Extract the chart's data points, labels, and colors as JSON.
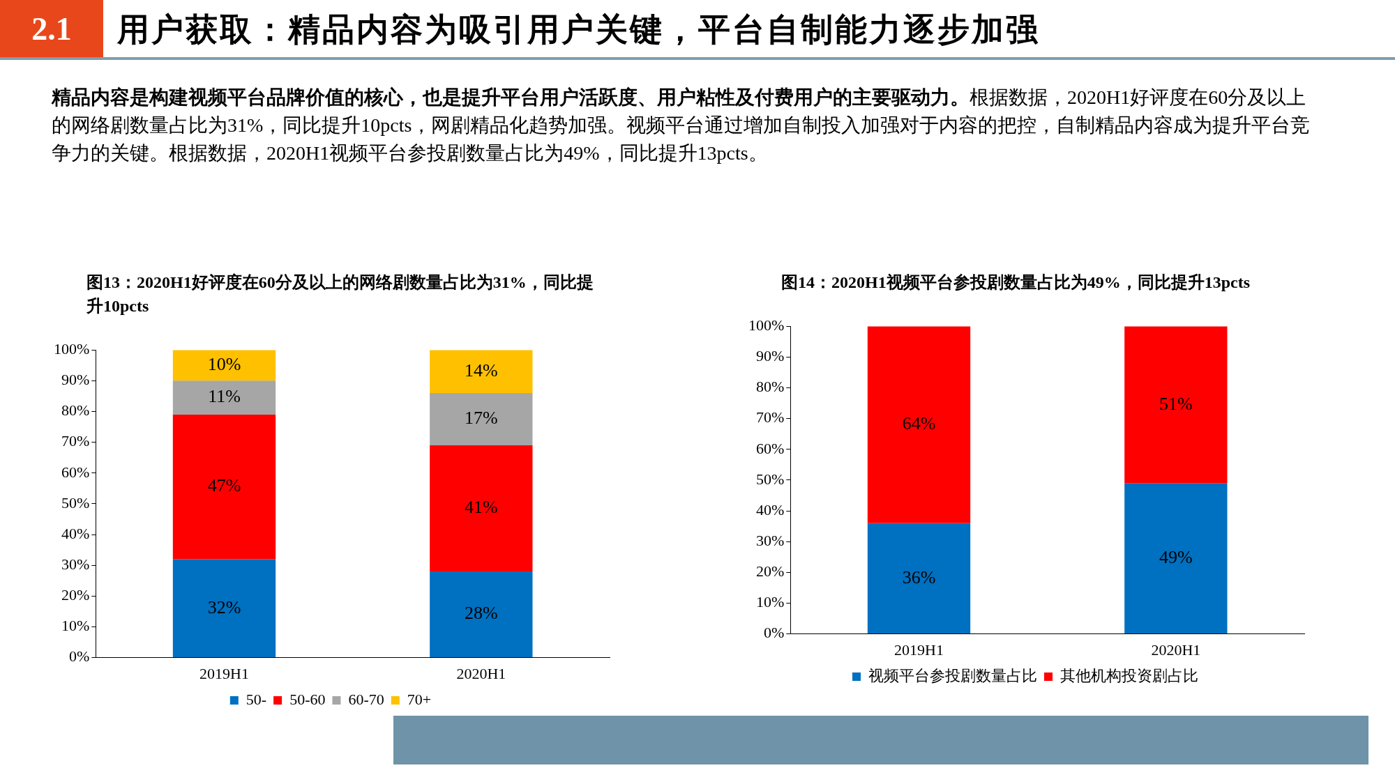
{
  "chart_data": [
    {
      "type": "other",
      "title": "用户获取：精品内容为吸引用户关键，平台自制能力逐步加强",
      "annotations": [
        "2.1",
        "精品内容是构建视频平台品牌价值的核心，也是提升平台用户活跃度、用户粘性及付费用户的主要驱动力。",
        "根据数据，2020H1好评度在60分及以上的网络剧数量占比为31%，同比提升10pcts，网剧精品化趋势加强。视频平台通过增加自制投入加强对于内容的把控，自制精品内容成为提升平台竞争力的关键。根据数据，2020H1视频平台参投剧数量占比为49%，同比提升13pcts。"
      ]
    },
    {
      "type": "bar",
      "stacked": true,
      "title": "图13：2020H1好评度在60分及以上的网络剧数量占比为31%，同比提升10pcts",
      "categories": [
        "2019H1",
        "2020H1"
      ],
      "ylim": [
        0,
        100
      ],
      "yticks": [
        {
          "value": 0,
          "label": "0%"
        },
        {
          "value": 10,
          "label": "10%"
        },
        {
          "value": 20,
          "label": "20%"
        },
        {
          "value": 30,
          "label": "30%"
        },
        {
          "value": 40,
          "label": "40%"
        },
        {
          "value": 50,
          "label": "50%"
        },
        {
          "value": 60,
          "label": "60%"
        },
        {
          "value": 70,
          "label": "70%"
        },
        {
          "value": 80,
          "label": "80%"
        },
        {
          "value": 90,
          "label": "90%"
        },
        {
          "value": 100,
          "label": "100%"
        }
      ],
      "grid": false,
      "legend": "bottom",
      "series": [
        {
          "name": "50-",
          "color": "#0070c0",
          "values": [
            32,
            28
          ],
          "value_labels": [
            "32%",
            "28%"
          ]
        },
        {
          "name": "50-60",
          "color": "#ff0000",
          "values": [
            47,
            41
          ],
          "value_labels": [
            "47%",
            "41%"
          ]
        },
        {
          "name": "60-70",
          "color": "#a6a6a6",
          "values": [
            11,
            17
          ],
          "value_labels": [
            "11%",
            "17%"
          ]
        },
        {
          "name": "70+",
          "color": "#ffc000",
          "values": [
            10,
            14
          ],
          "value_labels": [
            "10%",
            "14%"
          ]
        }
      ]
    },
    {
      "type": "bar",
      "stacked": true,
      "title": "图14：2020H1视频平台参投剧数量占比为49%，同比提升13pcts",
      "categories": [
        "2019H1",
        "2020H1"
      ],
      "ylim": [
        0,
        100
      ],
      "yticks": [
        {
          "value": 0,
          "label": "0%"
        },
        {
          "value": 10,
          "label": "10%"
        },
        {
          "value": 20,
          "label": "20%"
        },
        {
          "value": 30,
          "label": "30%"
        },
        {
          "value": 40,
          "label": "40%"
        },
        {
          "value": 50,
          "label": "50%"
        },
        {
          "value": 60,
          "label": "60%"
        },
        {
          "value": 70,
          "label": "70%"
        },
        {
          "value": 80,
          "label": "80%"
        },
        {
          "value": 90,
          "label": "90%"
        },
        {
          "value": 100,
          "label": "100%"
        }
      ],
      "grid": false,
      "legend": "bottom",
      "series": [
        {
          "name": "视频平台参投剧数量占比",
          "color": "#0070c0",
          "values": [
            36,
            49
          ],
          "value_labels": [
            "36%",
            "49%"
          ]
        },
        {
          "name": "其他机构投资剧占比",
          "color": "#ff0000",
          "values": [
            64,
            51
          ],
          "value_labels": [
            "64%",
            "51%"
          ]
        }
      ]
    }
  ]
}
